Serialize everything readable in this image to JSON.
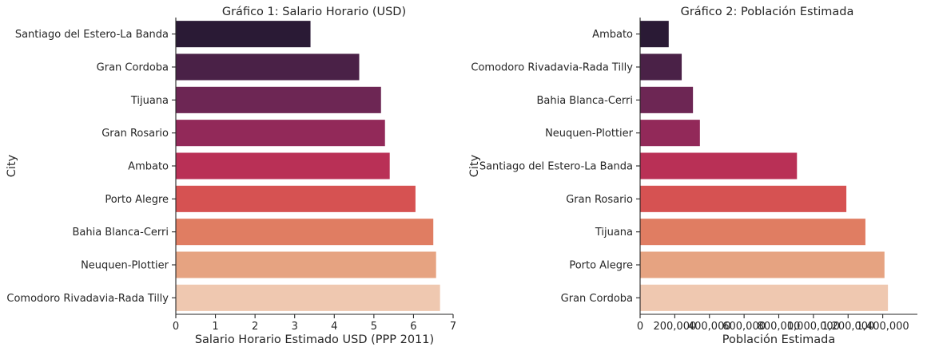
{
  "chart_data": [
    {
      "type": "bar",
      "orientation": "horizontal",
      "title": "Gráfico 1: Salario Horario (USD)",
      "xlabel": "Salario Horario Estimado USD (PPP 2011)",
      "ylabel": "City",
      "xlim": [
        0,
        7
      ],
      "xticks": [
        0,
        1,
        2,
        3,
        4,
        5,
        6,
        7
      ],
      "xtick_labels": [
        "0",
        "1",
        "2",
        "3",
        "4",
        "5",
        "6",
        "7"
      ],
      "categories": [
        "Santiago del Estero-La Banda",
        "Gran Cordoba",
        "Tijuana",
        "Gran Rosario",
        "Ambato",
        "Porto Alegre",
        "Bahia Blanca-Cerri",
        "Neuquen-Plottier",
        "Comodoro Rivadavia-Rada Tilly"
      ],
      "values": [
        3.4,
        4.63,
        5.18,
        5.28,
        5.4,
        6.05,
        6.5,
        6.57,
        6.67
      ],
      "colors": [
        "#2a1a35",
        "#4a2147",
        "#6d2654",
        "#922959",
        "#b93056",
        "#d65252",
        "#e07d62",
        "#e6a381",
        "#efc8b0"
      ],
      "grid": false
    },
    {
      "type": "bar",
      "orientation": "horizontal",
      "title": "Gráfico 2: Población Estimada",
      "xlabel": "Población Estimada",
      "ylabel": "City",
      "xlim": [
        0,
        1600000
      ],
      "xticks": [
        0,
        200000,
        400000,
        600000,
        800000,
        1000000,
        1200000,
        1400000
      ],
      "xtick_labels": [
        "0",
        "200,000",
        "400,000",
        "600,000",
        "800,000",
        "1,000,000",
        "1,200,000",
        "1,400,000"
      ],
      "categories": [
        "Ambato",
        "Comodoro Rivadavia-Rada Tilly",
        "Bahia Blanca-Cerri",
        "Neuquen-Plottier",
        "Santiago del Estero-La Banda",
        "Gran Rosario",
        "Tijuana",
        "Porto Alegre",
        "Gran Cordoba"
      ],
      "values": [
        165000,
        240000,
        305000,
        345000,
        905000,
        1190000,
        1300000,
        1410000,
        1430000
      ],
      "colors": [
        "#2a1a35",
        "#4a2147",
        "#6d2654",
        "#922959",
        "#b93056",
        "#d65252",
        "#e07d62",
        "#e6a381",
        "#efc8b0"
      ],
      "grid": false
    }
  ]
}
